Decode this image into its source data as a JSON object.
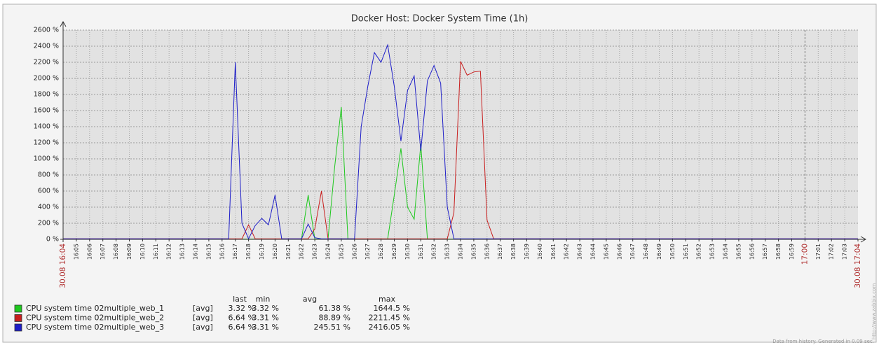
{
  "chart_data": {
    "type": "line",
    "title": "Docker Host: Docker System Time (1h)",
    "categories": [
      "30.08 16:04",
      null,
      "16:05",
      null,
      "16:06",
      null,
      "16:07",
      null,
      "16:08",
      null,
      "16:09",
      null,
      "16:10",
      null,
      "16:11",
      null,
      "16:12",
      null,
      "16:13",
      null,
      "16:14",
      null,
      "16:15",
      null,
      "16:16",
      null,
      "16:17",
      null,
      "16:18",
      null,
      "16:19",
      null,
      "16:20",
      null,
      "16:21",
      null,
      "16:22",
      null,
      "16:23",
      null,
      "16:24",
      null,
      "16:25",
      null,
      "16:26",
      null,
      "16:27",
      null,
      "16:28",
      null,
      "16:29",
      null,
      "16:30",
      null,
      "16:31",
      null,
      "16:32",
      null,
      "16:33",
      null,
      "16:34",
      null,
      "16:35",
      null,
      "16:36",
      null,
      "16:37",
      null,
      "16:38",
      null,
      "16:39",
      null,
      "16:40",
      null,
      "16:41",
      null,
      "16:42",
      null,
      "16:43",
      null,
      "16:44",
      null,
      "16:45",
      null,
      "16:46",
      null,
      "16:47",
      null,
      "16:48",
      null,
      "16:49",
      null,
      "16:50",
      null,
      "16:51",
      null,
      "16:52",
      null,
      "16:53",
      null,
      "16:54",
      null,
      "16:55",
      null,
      "16:56",
      null,
      "16:57",
      null,
      "16:58",
      null,
      "16:59",
      null,
      "17:00",
      null,
      "17:01",
      null,
      "17:02",
      null,
      "17:03",
      null,
      "30.08 17:04"
    ],
    "ylim": [
      0,
      2600
    ],
    "yticks": [
      {
        "value": 0,
        "label": "0 %"
      },
      {
        "value": 200,
        "label": "200 %"
      },
      {
        "value": 400,
        "label": "400 %"
      },
      {
        "value": 600,
        "label": "600 %"
      },
      {
        "value": 800,
        "label": "800 %"
      },
      {
        "value": 1000,
        "label": "1000 %"
      },
      {
        "value": 1200,
        "label": "1200 %"
      },
      {
        "value": 1400,
        "label": "1400 %"
      },
      {
        "value": 1600,
        "label": "1600 %"
      },
      {
        "value": 1800,
        "label": "1800 %"
      },
      {
        "value": 2000,
        "label": "2000 %"
      },
      {
        "value": 2200,
        "label": "2200 %"
      },
      {
        "value": 2400,
        "label": "2400 %"
      },
      {
        "value": 2600,
        "label": "2600 %"
      }
    ],
    "grid": true,
    "legend_columns": [
      "last",
      "min",
      "avg",
      "max"
    ],
    "series": [
      {
        "name": "CPU system time 02multiple_web_1",
        "color": "#1ec81e",
        "function": "[avg]",
        "stats": [
          "3.32 %",
          "3.32 %",
          "61.38 %",
          "1644.5 %"
        ],
        "values": [
          3.32,
          3.32,
          3.32,
          3.32,
          3.32,
          3.32,
          3.32,
          3.32,
          3.32,
          3.32,
          3.32,
          3.32,
          3.32,
          3.32,
          3.32,
          3.32,
          3.32,
          3.32,
          3.32,
          3.32,
          3.32,
          3.32,
          3.32,
          3.32,
          3.32,
          3.32,
          3.32,
          3.32,
          3.32,
          3.32,
          3.32,
          3.32,
          3.32,
          3.32,
          3.32,
          3.32,
          3.32,
          550,
          3.32,
          3.32,
          3.32,
          900,
          1644.5,
          3.32,
          3.32,
          3.32,
          3.32,
          3.32,
          3.32,
          3.32,
          550,
          1130,
          400,
          250,
          1180,
          3.32,
          3.32,
          3.32,
          3.32,
          3.32,
          3.32,
          3.32,
          3.32,
          3.32,
          3.32,
          3.32,
          3.32,
          3.32,
          3.32,
          3.32,
          3.32,
          3.32,
          3.32,
          3.32,
          3.32,
          3.32,
          3.32,
          3.32,
          3.32,
          3.32,
          3.32,
          3.32,
          3.32,
          3.32,
          3.32,
          3.32,
          3.32,
          3.32,
          3.32,
          3.32,
          3.32,
          3.32,
          3.32,
          3.32,
          3.32,
          3.32,
          3.32,
          3.32,
          3.32,
          3.32,
          3.32,
          3.32,
          3.32,
          3.32,
          3.32,
          3.32,
          3.32,
          3.32,
          3.32,
          3.32,
          3.32,
          3.32,
          3.32,
          3.32,
          3.32,
          3.32,
          3.32,
          3.32,
          3.32,
          3.32,
          3.32
        ]
      },
      {
        "name": "CPU system time 02multiple_web_2",
        "color": "#c81e1e",
        "function": "[avg]",
        "stats": [
          "6.64 %",
          "3.31 %",
          "88.89 %",
          "2211.45 %"
        ],
        "values": [
          6.64,
          6.64,
          6.64,
          6.64,
          6.64,
          6.64,
          6.64,
          6.64,
          6.64,
          6.64,
          6.64,
          6.64,
          6.64,
          6.64,
          6.64,
          6.64,
          6.64,
          6.64,
          6.64,
          6.64,
          6.64,
          6.64,
          6.64,
          6.64,
          6.64,
          6.64,
          6.64,
          6.64,
          180,
          6.64,
          6.64,
          6.64,
          6.64,
          6.64,
          6.64,
          6.64,
          6.64,
          6.64,
          130,
          600,
          6.64,
          6.64,
          6.64,
          6.64,
          6.64,
          6.64,
          6.64,
          6.64,
          6.64,
          6.64,
          6.64,
          6.64,
          6.64,
          6.64,
          6.64,
          6.64,
          6.64,
          6.64,
          6.64,
          330,
          2211.45,
          2040,
          2080,
          2090,
          240,
          6.64,
          6.64,
          6.64,
          6.64,
          6.64,
          6.64,
          6.64,
          6.64,
          6.64,
          6.64,
          6.64,
          6.64,
          6.64,
          6.64,
          6.64,
          6.64,
          6.64,
          6.64,
          6.64,
          6.64,
          6.64,
          6.64,
          6.64,
          6.64,
          6.64,
          6.64,
          6.64,
          6.64,
          6.64,
          6.64,
          6.64,
          6.64,
          6.64,
          6.64,
          6.64,
          6.64,
          6.64,
          6.64,
          6.64,
          6.64,
          6.64,
          6.64,
          6.64,
          6.64,
          6.64,
          6.64,
          6.64,
          6.64,
          6.64,
          6.64,
          6.64,
          6.64,
          6.64,
          6.64,
          6.64,
          6.64
        ]
      },
      {
        "name": "CPU system time 02multiple_web_3",
        "color": "#1e1ec8",
        "function": "[avg]",
        "stats": [
          "6.64 %",
          "3.31 %",
          "245.51 %",
          "2416.05 %"
        ],
        "values": [
          6.64,
          6.64,
          6.64,
          6.64,
          6.64,
          6.64,
          6.64,
          6.64,
          6.64,
          6.64,
          6.64,
          6.64,
          6.64,
          6.64,
          6.64,
          6.64,
          6.64,
          6.64,
          6.64,
          6.64,
          6.64,
          6.64,
          6.64,
          6.64,
          6.64,
          6.64,
          2200,
          200,
          6.64,
          170,
          260,
          180,
          550,
          6.64,
          6.64,
          6.64,
          6.64,
          190,
          20,
          6.64,
          6.64,
          6.64,
          6.64,
          6.64,
          6.64,
          1400,
          1900,
          2320,
          2200,
          2416.05,
          1900,
          1220,
          1850,
          2030,
          1100,
          1970,
          2160,
          1940,
          400,
          6.64,
          6.64,
          6.64,
          6.64,
          6.64,
          6.64,
          6.64,
          6.64,
          6.64,
          6.64,
          6.64,
          6.64,
          6.64,
          6.64,
          6.64,
          6.64,
          6.64,
          6.64,
          6.64,
          6.64,
          6.64,
          6.64,
          6.64,
          6.64,
          6.64,
          6.64,
          6.64,
          6.64,
          6.64,
          6.64,
          6.64,
          6.64,
          6.64,
          6.64,
          6.64,
          6.64,
          6.64,
          6.64,
          6.64,
          6.64,
          6.64,
          6.64,
          6.64,
          6.64,
          6.64,
          6.64,
          6.64,
          6.64,
          6.64,
          6.64,
          6.64,
          6.64,
          6.64,
          6.64,
          6.64,
          6.64,
          6.64,
          6.64,
          6.64,
          6.64,
          6.64,
          6.64
        ]
      }
    ],
    "footnote": "Data from history. Generated in 0.09 sec.",
    "watermark": "http://www.zabbix.com"
  }
}
